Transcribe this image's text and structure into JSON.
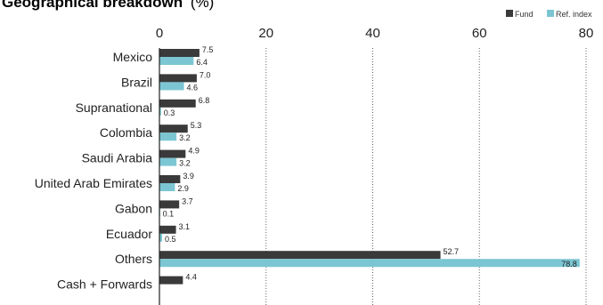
{
  "chart_data": {
    "type": "bar",
    "orientation": "horizontal",
    "title": "Geographical breakdown",
    "title_unit": "(%)",
    "xlim": [
      0,
      80
    ],
    "xticks": [
      "0",
      "20",
      "40",
      "60",
      "80"
    ],
    "grid": "vertical dotted lines at 20, 40, 60, 80",
    "legend_position": "top-right",
    "categories": [
      "Mexico",
      "Brazil",
      "Supranational",
      "Colombia",
      "Saudi Arabia",
      "United Arab Emirates",
      "Gabon",
      "Ecuador",
      "Others",
      "Cash + Forwards"
    ],
    "series": [
      {
        "name": "Fund",
        "color": "#3a3a3a",
        "values": [
          7.5,
          7.0,
          6.8,
          5.3,
          4.9,
          3.9,
          3.7,
          3.1,
          52.7,
          4.4
        ],
        "labels": [
          "7.5",
          "7.0",
          "6.8",
          "5.3",
          "4.9",
          "3.9",
          "3.7",
          "3.1",
          "52.7",
          "4.4"
        ]
      },
      {
        "name": "Ref. index",
        "color": "#7cc6d3",
        "values": [
          6.4,
          4.6,
          0.3,
          3.2,
          3.2,
          2.9,
          0.1,
          0.5,
          78.8,
          null
        ],
        "labels": [
          "6.4",
          "4.6",
          "0.3",
          "3.2",
          "3.2",
          "2.9",
          "0.1",
          "0.5",
          "78.8",
          ""
        ]
      }
    ]
  }
}
